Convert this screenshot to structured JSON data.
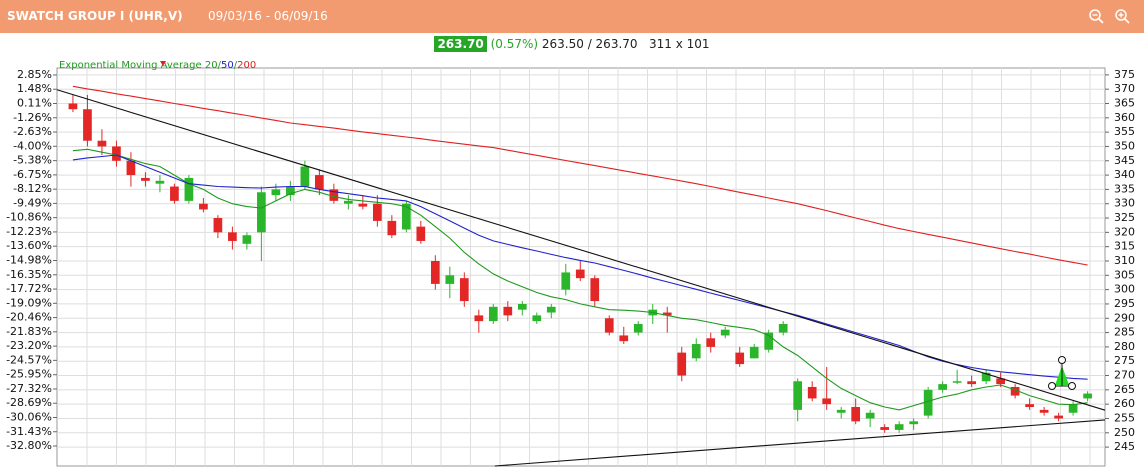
{
  "header": {
    "title": "SWATCH GROUP I (UHR,V)",
    "date_range": "09/03/16 - 06/09/16"
  },
  "quote": {
    "last": "263.70",
    "change": "(0.57%)",
    "bid_ask": "263.50 / 263.70",
    "size": "311 x 101"
  },
  "chart_data": {
    "type": "candlestick",
    "legend_label": "Exponential Moving Average",
    "legend_separator": "/",
    "xlim": [
      -1.1,
      71.2
    ],
    "ylim": [
      238.4,
      377.4
    ],
    "yticks": [
      375,
      370,
      365,
      360,
      355,
      350,
      345,
      340,
      335,
      330,
      325,
      320,
      315,
      310,
      305,
      300,
      295,
      290,
      285,
      280,
      275,
      270,
      265,
      260,
      255,
      250,
      245
    ],
    "y2lim": [
      -34.72,
      3.52
    ],
    "y2ticks": [
      {
        "value": 2.85,
        "label": "2.85%"
      },
      {
        "value": 1.48,
        "label": "1.48%"
      },
      {
        "value": 0.11,
        "label": "0.11%"
      },
      {
        "value": -1.26,
        "label": "-1.26%"
      },
      {
        "value": -2.63,
        "label": "-2.63%"
      },
      {
        "value": -4.0,
        "label": "-4.00%"
      },
      {
        "value": -5.38,
        "label": "-5.38%"
      },
      {
        "value": -6.75,
        "label": "-6.75%"
      },
      {
        "value": -8.12,
        "label": "-8.12%"
      },
      {
        "value": -9.49,
        "label": "-9.49%"
      },
      {
        "value": -10.86,
        "label": "-10.86%"
      },
      {
        "value": -12.23,
        "label": "-12.23%"
      },
      {
        "value": -13.6,
        "label": "-13.60%"
      },
      {
        "value": -14.98,
        "label": "-14.98%"
      },
      {
        "value": -16.35,
        "label": "-16.35%"
      },
      {
        "value": -17.72,
        "label": "-17.72%"
      },
      {
        "value": -19.09,
        "label": "-19.09%"
      },
      {
        "value": -20.46,
        "label": "-20.46%"
      },
      {
        "value": -21.83,
        "label": "-21.83%"
      },
      {
        "value": -23.2,
        "label": "-23.20%"
      },
      {
        "value": -24.57,
        "label": "-24.57%"
      },
      {
        "value": -25.95,
        "label": "-25.95%"
      },
      {
        "value": -27.32,
        "label": "-27.32%"
      },
      {
        "value": -28.69,
        "label": "-28.69%"
      },
      {
        "value": -30.06,
        "label": "-30.06%"
      },
      {
        "value": -31.43,
        "label": "-31.43%"
      },
      {
        "value": -32.8,
        "label": "-32.80%"
      }
    ],
    "grid": true,
    "up_color": "#2bb52b",
    "down_color": "#e32626",
    "candles": [
      [
        365,
        368,
        362,
        363
      ],
      [
        363,
        368,
        350,
        352
      ],
      [
        352,
        356,
        347,
        350
      ],
      [
        350,
        352,
        343,
        345
      ],
      [
        345,
        348,
        336,
        340
      ],
      [
        339,
        341,
        336,
        338
      ],
      [
        337,
        340,
        334,
        338
      ],
      [
        336,
        337,
        330,
        331
      ],
      [
        331,
        340,
        330,
        339
      ],
      [
        330,
        332,
        327,
        328
      ],
      [
        325,
        326,
        318,
        320
      ],
      [
        320,
        322,
        314,
        317
      ],
      [
        316,
        320,
        314,
        319
      ],
      [
        320,
        336,
        310,
        334
      ],
      [
        333,
        337,
        331,
        335
      ],
      [
        333,
        338,
        331,
        336
      ],
      [
        336,
        345,
        335,
        343
      ],
      [
        340,
        342,
        333,
        335
      ],
      [
        335,
        337,
        330,
        331
      ],
      [
        330,
        333,
        328,
        331
      ],
      [
        330,
        333,
        328,
        329
      ],
      [
        330,
        333,
        322,
        324
      ],
      [
        324,
        326,
        318,
        319
      ],
      [
        321,
        331,
        320,
        330
      ],
      [
        322,
        324,
        316,
        317
      ],
      [
        310,
        312,
        300,
        302
      ],
      [
        302,
        308,
        297,
        305
      ],
      [
        304,
        306,
        294,
        296
      ],
      [
        291,
        293,
        285,
        289
      ],
      [
        289,
        295,
        288,
        294
      ],
      [
        294,
        296,
        289,
        291
      ],
      [
        293,
        296,
        291,
        295
      ],
      [
        289,
        292,
        288,
        291
      ],
      [
        292,
        295,
        290,
        294
      ],
      [
        300,
        309,
        298,
        306
      ],
      [
        307,
        310,
        303,
        304
      ],
      [
        304,
        305,
        294,
        296
      ],
      [
        290,
        291,
        284,
        285
      ],
      [
        284,
        287,
        281,
        282
      ],
      [
        285,
        289,
        284,
        288
      ],
      [
        291,
        295,
        288,
        293
      ],
      [
        292,
        294,
        285,
        291
      ],
      [
        278,
        280,
        268,
        270
      ],
      [
        276,
        283,
        275,
        281
      ],
      [
        283,
        285,
        278,
        280
      ],
      [
        284,
        287,
        283,
        286
      ],
      [
        278,
        280,
        273,
        274
      ],
      [
        276,
        281,
        276,
        280
      ],
      [
        279,
        286,
        278,
        285
      ],
      [
        285,
        289,
        284,
        288
      ],
      [
        258,
        269,
        254,
        268
      ],
      [
        266,
        268,
        261,
        262
      ],
      [
        262,
        273,
        258,
        260
      ],
      [
        257,
        259,
        255,
        258
      ],
      [
        259,
        262,
        253,
        254
      ],
      [
        255,
        258,
        252,
        257
      ],
      [
        252,
        253,
        250,
        251
      ],
      [
        251,
        254,
        250,
        253
      ],
      [
        253,
        255,
        251,
        254
      ],
      [
        256,
        266,
        255,
        265
      ],
      [
        265,
        268,
        264,
        267
      ],
      [
        268,
        272,
        267,
        268
      ],
      [
        268,
        270,
        266,
        267
      ],
      [
        268,
        272,
        267,
        271
      ],
      [
        269,
        271,
        266,
        267
      ],
      [
        266,
        267,
        262,
        263
      ],
      [
        260,
        262,
        258,
        259
      ],
      [
        258,
        259,
        256,
        257
      ],
      [
        256,
        257,
        254,
        255
      ],
      [
        257,
        261,
        256,
        260
      ],
      [
        262,
        264.5,
        261,
        263.7
      ]
    ],
    "series": [
      {
        "name": "20",
        "color": "#1f9a1f",
        "values": [
          348.5,
          349,
          348,
          347,
          345.5,
          344,
          343,
          340,
          337,
          335,
          332,
          330,
          329,
          328.5,
          331,
          333.5,
          335,
          334,
          332.5,
          331.5,
          331,
          330.5,
          330,
          329,
          326,
          322,
          318,
          313,
          309,
          305.5,
          303,
          301,
          299,
          297.5,
          296.5,
          295,
          294,
          293,
          292.8,
          292.5,
          292,
          291,
          290,
          289.5,
          288.5,
          287.5,
          286.8,
          286,
          284,
          280,
          277,
          273,
          269,
          265.5,
          263,
          260.5,
          259,
          258,
          259.5,
          261,
          262.5,
          263.5,
          265,
          266,
          266.7,
          265,
          263,
          261.5,
          260,
          259.8,
          260.5
        ]
      },
      {
        "name": "50",
        "color": "#2222cc",
        "values": [
          345.3,
          346,
          346.5,
          347,
          345,
          343,
          341,
          339,
          337,
          336.5,
          336,
          335.8,
          335.6,
          335.5,
          335.8,
          336,
          336,
          335,
          334.2,
          333.5,
          332.8,
          332,
          331.5,
          331,
          329,
          326.5,
          324,
          321.5,
          319,
          317,
          315.8,
          314.6,
          313.5,
          312.3,
          311.2,
          310.2,
          309.3,
          308,
          306.7,
          305.4,
          304,
          302.7,
          301.4,
          300.1,
          298.8,
          297.5,
          296.2,
          294.9,
          293.6,
          292.3,
          291,
          289.5,
          288,
          286.5,
          285,
          283.5,
          282,
          280.5,
          278.5,
          276.5,
          275,
          273.8,
          272.8,
          272,
          271.3,
          270.8,
          270.3,
          269.8,
          269.4,
          269,
          268.7
        ]
      },
      {
        "name": "200",
        "color": "#e02020",
        "values": [
          371,
          370.1,
          369.3,
          368.4,
          367.6,
          366.7,
          365.9,
          365,
          364.2,
          363.3,
          362.5,
          361.6,
          360.8,
          359.9,
          359.1,
          358.2,
          357.6,
          357,
          356.4,
          355.7,
          355.1,
          354.5,
          353.9,
          353.3,
          352.7,
          352,
          351.4,
          350.8,
          350.2,
          349.6,
          348.7,
          347.8,
          346.9,
          346,
          345.1,
          344.2,
          343.3,
          342.4,
          341.5,
          340.6,
          339.7,
          338.8,
          337.9,
          337,
          336,
          335,
          334,
          333,
          332,
          331,
          330,
          328.8,
          327.6,
          326.3,
          325,
          323.8,
          322.5,
          321.3,
          320.3,
          319.3,
          318.3,
          317.3,
          316.3,
          315.3,
          314.3,
          313.3,
          312.4,
          311.4,
          310.4,
          309.5,
          308.6
        ]
      }
    ],
    "trendlines": [
      {
        "x": [
          -1.1,
          71.2
        ],
        "y": [
          369.8,
          257.9
        ]
      },
      {
        "x": [
          29.1,
          71.2
        ],
        "y": [
          238.4,
          254.5
        ]
      }
    ]
  }
}
